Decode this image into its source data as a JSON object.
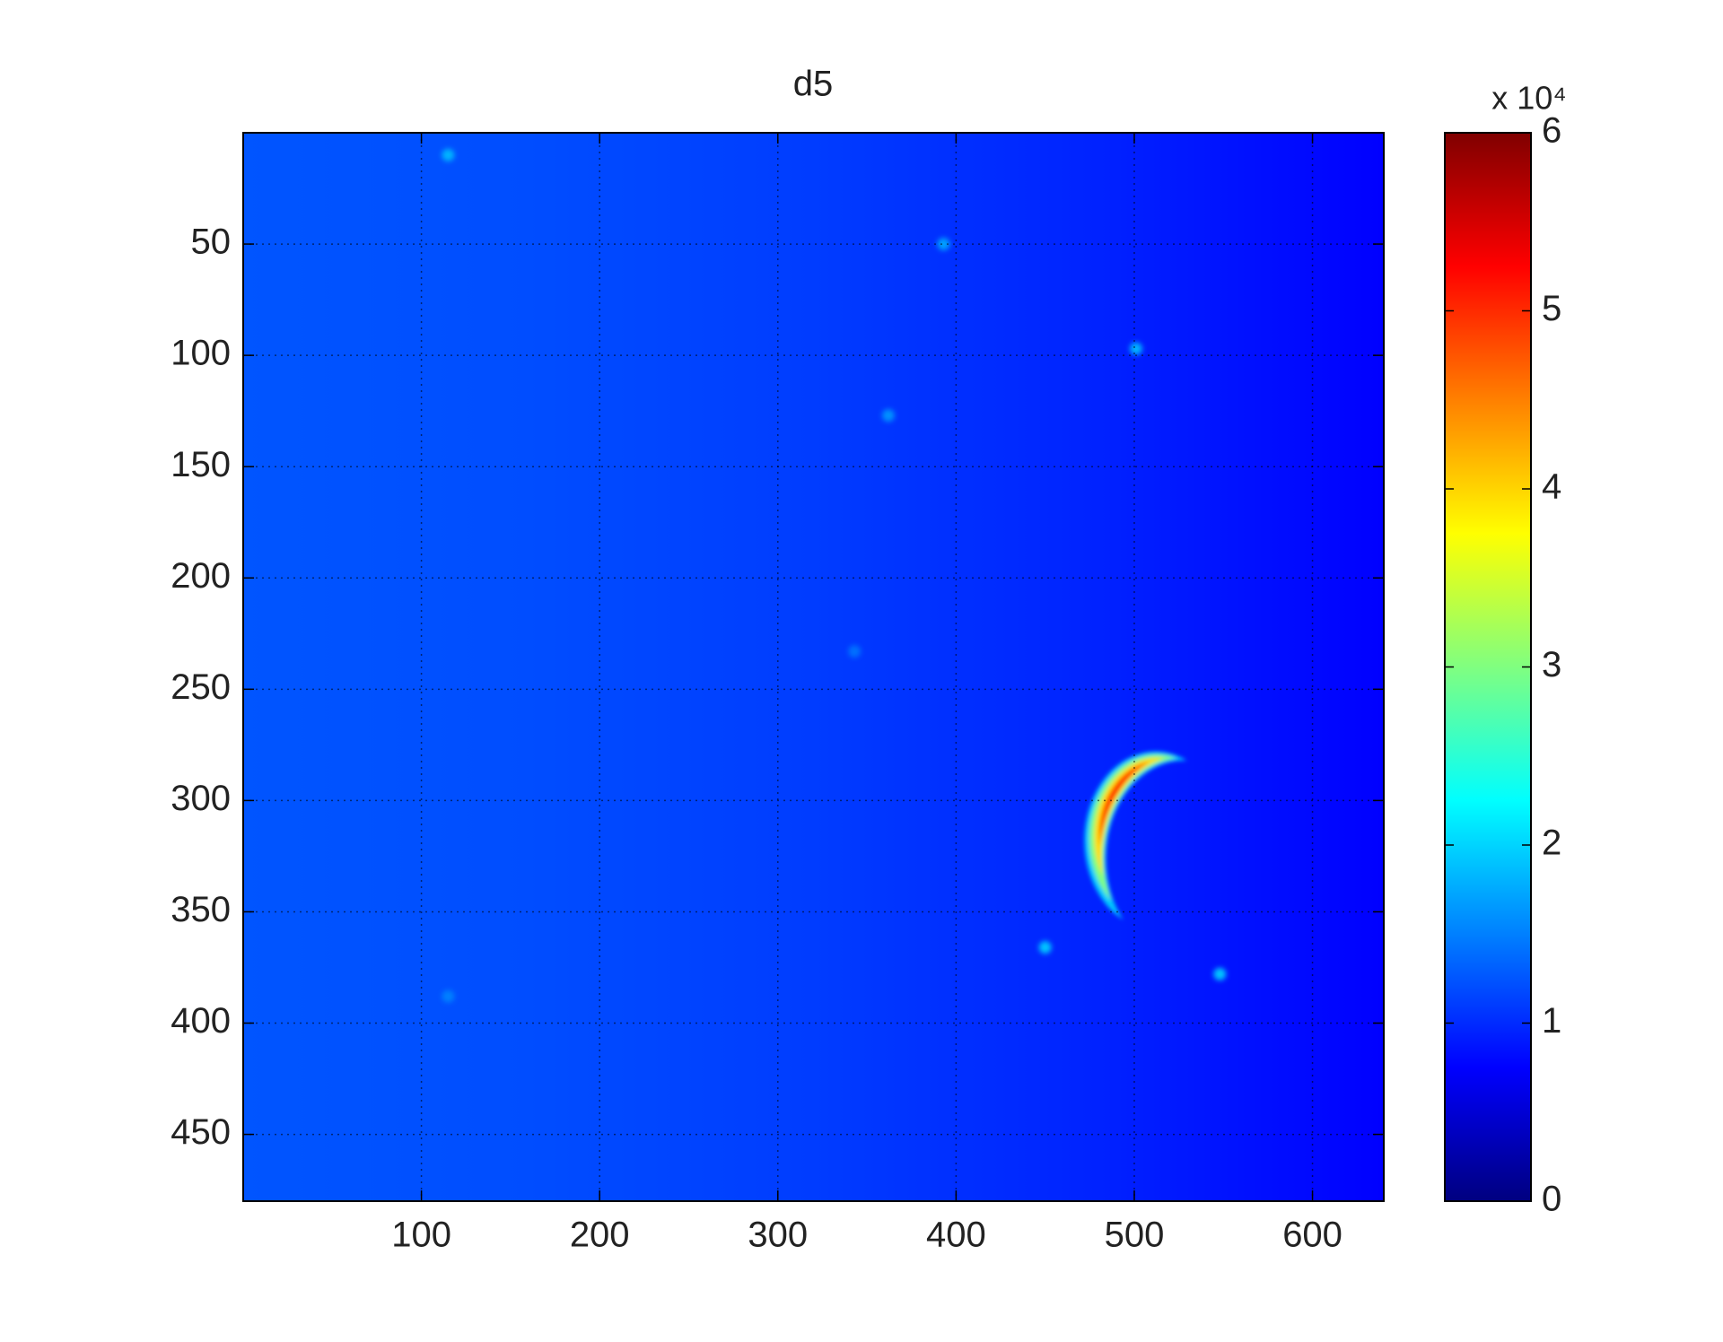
{
  "chart_data": {
    "type": "heatmap",
    "title": "d5",
    "colormap": "jet",
    "xlim": [
      0,
      640
    ],
    "ylim": [
      0,
      480
    ],
    "y_reversed": true,
    "xticks": [
      100,
      200,
      300,
      400,
      500,
      600
    ],
    "yticks": [
      50,
      100,
      150,
      200,
      250,
      300,
      350,
      400,
      450
    ],
    "grid": true,
    "clim": [
      0,
      60000
    ],
    "colorbar_label": "x 10⁴",
    "cticks": [
      {
        "value": 0,
        "label": "0"
      },
      {
        "value": 10000,
        "label": "1"
      },
      {
        "value": 20000,
        "label": "2"
      },
      {
        "value": 30000,
        "label": "3"
      },
      {
        "value": 40000,
        "label": "4"
      },
      {
        "value": 50000,
        "label": "5"
      },
      {
        "value": 60000,
        "label": "6"
      }
    ],
    "background": {
      "x": [
        0,
        160,
        320,
        480,
        640
      ],
      "values": [
        12500,
        12000,
        11000,
        9500,
        7500
      ]
    },
    "spots": {
      "x": [
        115,
        393,
        501,
        362,
        343,
        115,
        450,
        548
      ],
      "y": [
        10,
        50,
        97,
        127,
        233,
        388,
        366,
        378
      ],
      "values": [
        18000,
        17000,
        18000,
        16000,
        14000,
        15000,
        19000,
        19000
      ]
    },
    "crescent": {
      "x": 512,
      "y": 318,
      "value": 60000
    }
  }
}
